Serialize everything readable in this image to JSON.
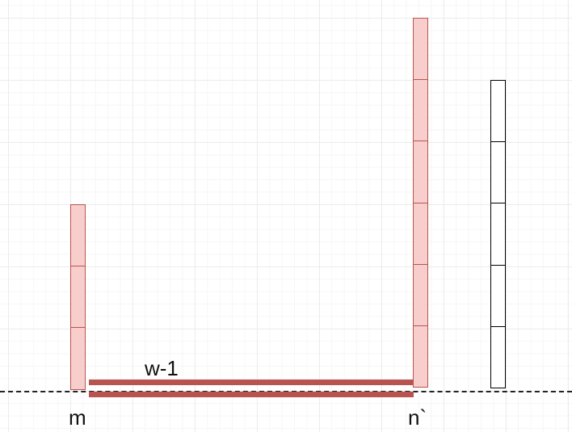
{
  "labels": {
    "gap": "w-1",
    "left": "m",
    "middle": "n`"
  },
  "bars": [
    {
      "id": "left",
      "segments": 3,
      "color": "red"
    },
    {
      "id": "middle",
      "segments": 6,
      "color": "red"
    },
    {
      "id": "right",
      "segments": 5,
      "color": "black"
    }
  ],
  "colors": {
    "fill_red": "#f8cecc",
    "stroke_red": "#b85450",
    "stroke_black": "#000000",
    "connector": "#b85450"
  }
}
